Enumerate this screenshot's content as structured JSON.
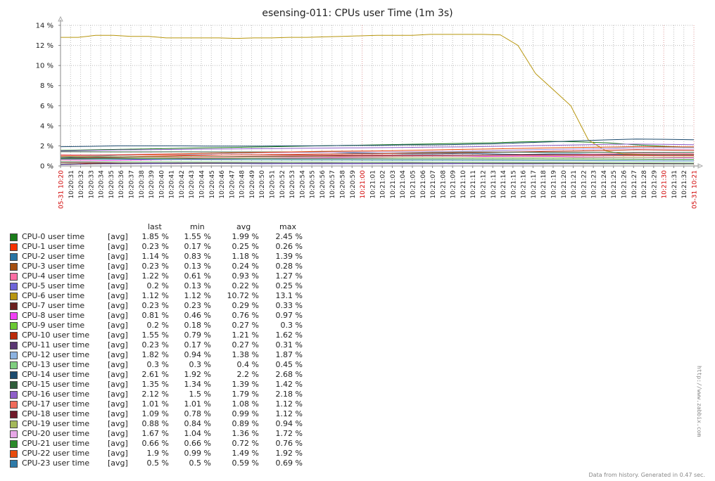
{
  "chart_data": {
    "type": "line",
    "title": "esensing-011: CPUs user Time (1m 3s)",
    "y_unit": "%",
    "ylim": [
      0,
      14
    ],
    "y_ticks": [
      "0 %",
      "2 %",
      "4 %",
      "6 %",
      "8 %",
      "10 %",
      "12 %",
      "14 %"
    ],
    "x_labels": [
      {
        "t": "05-31 10:20",
        "red": true
      },
      {
        "t": "10:20:31"
      },
      {
        "t": "10:20:32"
      },
      {
        "t": "10:20:33"
      },
      {
        "t": "10:20:34"
      },
      {
        "t": "10:20:35"
      },
      {
        "t": "10:20:36"
      },
      {
        "t": "10:20:37"
      },
      {
        "t": "10:20:38"
      },
      {
        "t": "10:20:39"
      },
      {
        "t": "10:20:40"
      },
      {
        "t": "10:20:41"
      },
      {
        "t": "10:20:42"
      },
      {
        "t": "10:20:43"
      },
      {
        "t": "10:20:44"
      },
      {
        "t": "10:20:45"
      },
      {
        "t": "10:20:46"
      },
      {
        "t": "10:20:47"
      },
      {
        "t": "10:20:48"
      },
      {
        "t": "10:20:49"
      },
      {
        "t": "10:20:50"
      },
      {
        "t": "10:20:51"
      },
      {
        "t": "10:20:52"
      },
      {
        "t": "10:20:53"
      },
      {
        "t": "10:20:54"
      },
      {
        "t": "10:20:55"
      },
      {
        "t": "10:20:56"
      },
      {
        "t": "10:20:57"
      },
      {
        "t": "10:20:58"
      },
      {
        "t": "10:20:59"
      },
      {
        "t": "10:21:00",
        "red": true
      },
      {
        "t": "10:21:01"
      },
      {
        "t": "10:21:02"
      },
      {
        "t": "10:21:03"
      },
      {
        "t": "10:21:04"
      },
      {
        "t": "10:21:05"
      },
      {
        "t": "10:21:06"
      },
      {
        "t": "10:21:07"
      },
      {
        "t": "10:21:08"
      },
      {
        "t": "10:21:09"
      },
      {
        "t": "10:21:10"
      },
      {
        "t": "10:21:11"
      },
      {
        "t": "10:21:12"
      },
      {
        "t": "10:21:13"
      },
      {
        "t": "10:21:14"
      },
      {
        "t": "10:21:15"
      },
      {
        "t": "10:21:16"
      },
      {
        "t": "10:21:17"
      },
      {
        "t": "10:21:18"
      },
      {
        "t": "10:21:19"
      },
      {
        "t": "10:21:20"
      },
      {
        "t": "10:21:21"
      },
      {
        "t": "10:21:22"
      },
      {
        "t": "10:21:23"
      },
      {
        "t": "10:21:24"
      },
      {
        "t": "10:21:25"
      },
      {
        "t": "10:21:26"
      },
      {
        "t": "10:21:27"
      },
      {
        "t": "10:21:28"
      },
      {
        "t": "10:21:29"
      },
      {
        "t": "10:21:30",
        "red": true
      },
      {
        "t": "10:21:31"
      },
      {
        "t": "10:21:32"
      },
      {
        "t": "05-31 10:21",
        "red": true
      }
    ],
    "legend_headers": {
      "last": "last",
      "min": "min",
      "avg": "avg",
      "max": "max"
    },
    "series": [
      {
        "name": "CPU-0 user time",
        "func": "[avg]",
        "last": "1.85 %",
        "min": "1.55 %",
        "avg": "1.99 %",
        "max": "2.45 %",
        "color": "#1a7c1a",
        "values": [
          1.55,
          1.6,
          1.65,
          1.7,
          1.75,
          1.8,
          1.85,
          1.9,
          1.95,
          2.0,
          2.05,
          2.1,
          2.15,
          2.2,
          2.25,
          2.3,
          2.4,
          2.45,
          2.4,
          2.3,
          2.1,
          1.95,
          1.85
        ]
      },
      {
        "name": "CPU-1 user time",
        "func": "[avg]",
        "last": "0.23 %",
        "min": "0.17 %",
        "avg": "0.25 %",
        "max": "0.26 %",
        "color": "#f63100",
        "values": [
          0.17,
          0.25,
          0.26,
          0.25,
          0.24,
          0.26,
          0.25,
          0.26,
          0.25,
          0.24,
          0.25,
          0.26,
          0.25,
          0.25,
          0.26,
          0.25,
          0.24,
          0.25,
          0.26,
          0.25,
          0.25,
          0.24,
          0.23
        ]
      },
      {
        "name": "CPU-2 user time",
        "func": "[avg]",
        "last": "1.14 %",
        "min": "0.83 %",
        "avg": "1.18 %",
        "max": "1.39 %",
        "color": "#2774a4",
        "values": [
          0.83,
          0.95,
          1.05,
          1.1,
          1.15,
          1.2,
          1.25,
          1.3,
          1.35,
          1.39,
          1.3,
          1.25,
          1.2,
          1.2,
          1.25,
          1.2,
          1.15,
          1.2,
          1.2,
          1.15,
          1.15,
          1.14,
          1.14
        ]
      },
      {
        "name": "CPU-3 user time",
        "func": "[avg]",
        "last": "0.23 %",
        "min": "0.13 %",
        "avg": "0.24 %",
        "max": "0.28 %",
        "color": "#a54f10",
        "values": [
          0.13,
          0.2,
          0.22,
          0.25,
          0.26,
          0.28,
          0.25,
          0.24,
          0.25,
          0.26,
          0.25,
          0.24,
          0.25,
          0.24,
          0.25,
          0.24,
          0.23,
          0.24,
          0.25,
          0.24,
          0.24,
          0.23,
          0.23
        ]
      },
      {
        "name": "CPU-4 user time",
        "func": "[avg]",
        "last": "1.22 %",
        "min": "0.61 %",
        "avg": "0.93 %",
        "max": "1.27 %",
        "color": "#fc6ea3",
        "values": [
          0.61,
          0.65,
          0.7,
          0.75,
          0.8,
          0.82,
          0.85,
          0.88,
          0.9,
          0.92,
          0.95,
          0.98,
          1.0,
          1.02,
          1.05,
          1.08,
          1.1,
          1.12,
          1.15,
          1.2,
          1.27,
          1.25,
          1.22
        ]
      },
      {
        "name": "CPU-5 user time",
        "func": "[avg]",
        "last": "0.2 %",
        "min": "0.13 %",
        "avg": "0.22 %",
        "max": "0.25 %",
        "color": "#6d65d9",
        "values": [
          0.13,
          0.2,
          0.22,
          0.23,
          0.24,
          0.25,
          0.24,
          0.22,
          0.23,
          0.22,
          0.22,
          0.23,
          0.22,
          0.22,
          0.23,
          0.22,
          0.21,
          0.22,
          0.22,
          0.21,
          0.21,
          0.2,
          0.2
        ]
      },
      {
        "name": "CPU-6 user time",
        "func": "[avg]",
        "last": "1.12 %",
        "min": "1.12 %",
        "avg": "10.72 %",
        "max": "13.1 %",
        "color": "#b8960e",
        "values": [
          12.8,
          12.8,
          13.0,
          13.0,
          12.9,
          12.9,
          12.75,
          12.75,
          12.75,
          12.75,
          12.7,
          12.75,
          12.75,
          12.8,
          12.8,
          12.85,
          12.9,
          12.95,
          13.0,
          13.0,
          13.0,
          13.1,
          13.1,
          13.1,
          13.1,
          13.05,
          12.0,
          9.2,
          7.6,
          6.0,
          2.6,
          1.5,
          1.2,
          1.15,
          1.12,
          1.12,
          1.12
        ]
      },
      {
        "name": "CPU-7 user time",
        "func": "[avg]",
        "last": "0.23 %",
        "min": "0.23 %",
        "avg": "0.29 %",
        "max": "0.33 %",
        "color": "#6b1f1f",
        "values": [
          0.33,
          0.32,
          0.3,
          0.3,
          0.29,
          0.29,
          0.3,
          0.29,
          0.28,
          0.29,
          0.28,
          0.28,
          0.29,
          0.28,
          0.28,
          0.27,
          0.27,
          0.26,
          0.25,
          0.25,
          0.24,
          0.23,
          0.23
        ]
      },
      {
        "name": "CPU-8 user time",
        "func": "[avg]",
        "last": "0.81 %",
        "min": "0.46 %",
        "avg": "0.76 %",
        "max": "0.97 %",
        "color": "#f13ff5",
        "values": [
          0.46,
          0.5,
          0.55,
          0.6,
          0.65,
          0.7,
          0.72,
          0.75,
          0.78,
          0.8,
          0.82,
          0.85,
          0.88,
          0.9,
          0.92,
          0.95,
          0.97,
          0.95,
          0.9,
          0.88,
          0.85,
          0.82,
          0.81
        ]
      },
      {
        "name": "CPU-9 user time",
        "func": "[avg]",
        "last": "0.2 %",
        "min": "0.18 %",
        "avg": "0.27 %",
        "max": "0.3 %",
        "color": "#6ac932",
        "values": [
          0.18,
          0.22,
          0.25,
          0.28,
          0.3,
          0.3,
          0.29,
          0.28,
          0.29,
          0.28,
          0.28,
          0.29,
          0.28,
          0.27,
          0.28,
          0.27,
          0.26,
          0.25,
          0.24,
          0.23,
          0.22,
          0.21,
          0.2
        ]
      },
      {
        "name": "CPU-10 user time",
        "func": "[avg]",
        "last": "1.55 %",
        "min": "0.79 %",
        "avg": "1.21 %",
        "max": "1.62 %",
        "color": "#bb2a0a",
        "values": [
          0.79,
          0.85,
          0.9,
          0.95,
          1.0,
          1.05,
          1.1,
          1.12,
          1.15,
          1.18,
          1.2,
          1.22,
          1.25,
          1.28,
          1.3,
          1.35,
          1.4,
          1.45,
          1.5,
          1.55,
          1.62,
          1.58,
          1.55
        ]
      },
      {
        "name": "CPU-11 user time",
        "func": "[avg]",
        "last": "0.23 %",
        "min": "0.17 %",
        "avg": "0.27 %",
        "max": "0.31 %",
        "color": "#5a3672",
        "values": [
          0.17,
          0.22,
          0.25,
          0.28,
          0.3,
          0.31,
          0.3,
          0.29,
          0.28,
          0.29,
          0.28,
          0.28,
          0.29,
          0.28,
          0.27,
          0.27,
          0.26,
          0.26,
          0.25,
          0.25,
          0.24,
          0.23,
          0.23
        ]
      },
      {
        "name": "CPU-12 user time",
        "func": "[avg]",
        "last": "1.82 %",
        "min": "0.94 %",
        "avg": "1.38 %",
        "max": "1.87 %",
        "color": "#8cb2e0",
        "values": [
          0.94,
          1.0,
          1.05,
          1.1,
          1.15,
          1.2,
          1.25,
          1.3,
          1.32,
          1.35,
          1.38,
          1.4,
          1.42,
          1.45,
          1.5,
          1.55,
          1.6,
          1.65,
          1.7,
          1.75,
          1.87,
          1.85,
          1.82
        ]
      },
      {
        "name": "CPU-13 user time",
        "func": "[avg]",
        "last": "0.3 %",
        "min": "0.3 %",
        "avg": "0.4 %",
        "max": "0.45 %",
        "color": "#7fce7f",
        "values": [
          0.45,
          0.44,
          0.43,
          0.42,
          0.42,
          0.41,
          0.41,
          0.4,
          0.4,
          0.4,
          0.39,
          0.39,
          0.39,
          0.38,
          0.38,
          0.37,
          0.36,
          0.35,
          0.34,
          0.33,
          0.32,
          0.31,
          0.3
        ]
      },
      {
        "name": "CPU-14 user time",
        "func": "[avg]",
        "last": "2.61 %",
        "min": "1.92 %",
        "avg": "2.2 %",
        "max": "2.68 %",
        "color": "#1b4a6e",
        "values": [
          1.92,
          1.95,
          2.0,
          2.0,
          2.0,
          1.98,
          1.98,
          1.98,
          2.0,
          2.0,
          2.05,
          2.05,
          2.1,
          2.1,
          2.15,
          2.2,
          2.3,
          2.4,
          2.5,
          2.6,
          2.68,
          2.65,
          2.61
        ]
      },
      {
        "name": "CPU-15 user time",
        "func": "[avg]",
        "last": "1.35 %",
        "min": "1.34 %",
        "avg": "1.39 %",
        "max": "1.42 %",
        "color": "#2f5d3a",
        "values": [
          1.42,
          1.41,
          1.4,
          1.4,
          1.41,
          1.4,
          1.39,
          1.39,
          1.4,
          1.39,
          1.38,
          1.39,
          1.38,
          1.38,
          1.39,
          1.38,
          1.37,
          1.36,
          1.36,
          1.35,
          1.34,
          1.35,
          1.35
        ]
      },
      {
        "name": "CPU-16 user time",
        "func": "[avg]",
        "last": "2.12 %",
        "min": "1.5 %",
        "avg": "1.79 %",
        "max": "2.18 %",
        "color": "#8f5fc9",
        "values": [
          1.5,
          1.55,
          1.6,
          1.62,
          1.65,
          1.68,
          1.7,
          1.72,
          1.75,
          1.78,
          1.8,
          1.82,
          1.85,
          1.88,
          1.9,
          1.95,
          2.0,
          2.05,
          2.1,
          2.15,
          2.18,
          2.15,
          2.12
        ]
      },
      {
        "name": "CPU-17 user time",
        "func": "[avg]",
        "last": "1.01 %",
        "min": "1.01 %",
        "avg": "1.08 %",
        "max": "1.12 %",
        "color": "#f06b5b",
        "values": [
          1.12,
          1.11,
          1.1,
          1.1,
          1.1,
          1.09,
          1.09,
          1.09,
          1.08,
          1.08,
          1.08,
          1.08,
          1.07,
          1.07,
          1.07,
          1.06,
          1.06,
          1.05,
          1.04,
          1.03,
          1.02,
          1.01,
          1.01
        ]
      },
      {
        "name": "CPU-18 user time",
        "func": "[avg]",
        "last": "1.09 %",
        "min": "0.78 %",
        "avg": "0.99 %",
        "max": "1.12 %",
        "color": "#701a2a",
        "values": [
          0.78,
          0.82,
          0.85,
          0.88,
          0.9,
          0.92,
          0.94,
          0.96,
          0.98,
          1.0,
          1.02,
          1.04,
          1.05,
          1.06,
          1.08,
          1.1,
          1.12,
          1.11,
          1.1,
          1.1,
          1.1,
          1.09,
          1.09
        ]
      },
      {
        "name": "CPU-19 user time",
        "func": "[avg]",
        "last": "0.88 %",
        "min": "0.84 %",
        "avg": "0.89 %",
        "max": "0.94 %",
        "color": "#a3b85a",
        "values": [
          0.94,
          0.93,
          0.92,
          0.91,
          0.9,
          0.9,
          0.9,
          0.89,
          0.89,
          0.89,
          0.89,
          0.88,
          0.88,
          0.88,
          0.88,
          0.87,
          0.86,
          0.85,
          0.84,
          0.85,
          0.86,
          0.87,
          0.88
        ]
      },
      {
        "name": "CPU-20 user time",
        "func": "[avg]",
        "last": "1.67 %",
        "min": "1.04 %",
        "avg": "1.36 %",
        "max": "1.72 %",
        "color": "#e8a8e8",
        "values": [
          1.04,
          1.1,
          1.15,
          1.2,
          1.22,
          1.25,
          1.28,
          1.3,
          1.32,
          1.35,
          1.38,
          1.4,
          1.42,
          1.45,
          1.48,
          1.5,
          1.55,
          1.6,
          1.65,
          1.7,
          1.72,
          1.7,
          1.67
        ]
      },
      {
        "name": "CPU-21 user time",
        "func": "[avg]",
        "last": "0.66 %",
        "min": "0.66 %",
        "avg": "0.72 %",
        "max": "0.76 %",
        "color": "#2a8a2a",
        "values": [
          0.76,
          0.75,
          0.75,
          0.74,
          0.74,
          0.73,
          0.73,
          0.73,
          0.72,
          0.72,
          0.72,
          0.72,
          0.71,
          0.71,
          0.71,
          0.7,
          0.7,
          0.69,
          0.69,
          0.68,
          0.67,
          0.66,
          0.66
        ]
      },
      {
        "name": "CPU-22 user time",
        "func": "[avg]",
        "last": "1.9 %",
        "min": "0.99 %",
        "avg": "1.49 %",
        "max": "1.92 %",
        "color": "#e84c0c",
        "values": [
          0.99,
          1.05,
          1.1,
          1.15,
          1.2,
          1.25,
          1.3,
          1.35,
          1.4,
          1.45,
          1.48,
          1.5,
          1.55,
          1.6,
          1.65,
          1.7,
          1.75,
          1.8,
          1.85,
          1.88,
          1.92,
          1.91,
          1.9
        ]
      },
      {
        "name": "CPU-23 user time",
        "func": "[avg]",
        "last": "0.5 %",
        "min": "0.5 %",
        "avg": "0.59 %",
        "max": "0.69 %",
        "color": "#2e7aa8",
        "values": [
          0.69,
          0.68,
          0.67,
          0.66,
          0.65,
          0.64,
          0.63,
          0.62,
          0.61,
          0.6,
          0.6,
          0.59,
          0.58,
          0.58,
          0.57,
          0.56,
          0.55,
          0.54,
          0.53,
          0.52,
          0.51,
          0.5,
          0.5
        ]
      }
    ]
  },
  "side_url": "http://www.zabbix.com",
  "footer": "Data from history. Generated in 0.47 sec."
}
